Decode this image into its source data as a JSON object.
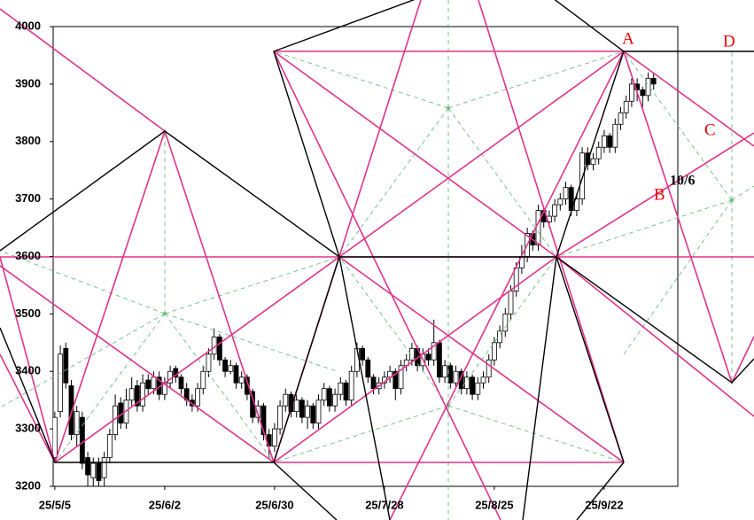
{
  "chart_data": {
    "type": "candlestick",
    "xlim": [
      -0.3,
      113.4
    ],
    "xticks": [
      {
        "value": 0,
        "label": "25/5/5"
      },
      {
        "value": 20,
        "label": "25/6/2"
      },
      {
        "value": 40,
        "label": "25/6/30"
      },
      {
        "value": 60,
        "label": "25/7/28"
      },
      {
        "value": 80,
        "label": "25/8/25"
      },
      {
        "value": 100,
        "label": "25/9/22"
      }
    ],
    "ylim": [
      3200,
      4000
    ],
    "yticks": [
      3200,
      3300,
      3400,
      3500,
      3600,
      3700,
      3800,
      3900,
      4000
    ],
    "annotations": [
      "A",
      "B",
      "C",
      "D",
      "10/6"
    ],
    "candles": [
      [
        3250,
        3330,
        3240,
        3320
      ],
      [
        3330,
        3445,
        3320,
        3430
      ],
      [
        3440,
        3450,
        3370,
        3380
      ],
      [
        3375,
        3385,
        3280,
        3290
      ],
      [
        3290,
        3340,
        3270,
        3330
      ],
      [
        3320,
        3330,
        3230,
        3240
      ],
      [
        3250,
        3260,
        3200,
        3220
      ],
      [
        3215,
        3250,
        3190,
        3240
      ],
      [
        3240,
        3250,
        3195,
        3210
      ],
      [
        3215,
        3260,
        3200,
        3250
      ],
      [
        3250,
        3300,
        3240,
        3290
      ],
      [
        3290,
        3360,
        3280,
        3340
      ],
      [
        3345,
        3355,
        3300,
        3310
      ],
      [
        3310,
        3370,
        3300,
        3350
      ],
      [
        3350,
        3390,
        3340,
        3370
      ],
      [
        3375,
        3385,
        3330,
        3340
      ],
      [
        3340,
        3395,
        3330,
        3380
      ],
      [
        3385,
        3395,
        3360,
        3370
      ],
      [
        3370,
        3400,
        3360,
        3390
      ],
      [
        3390,
        3400,
        3350,
        3360
      ],
      [
        3360,
        3390,
        3350,
        3380
      ],
      [
        3380,
        3410,
        3370,
        3400
      ],
      [
        3405,
        3410,
        3380,
        3390
      ],
      [
        3390,
        3395,
        3360,
        3370
      ],
      [
        3370,
        3380,
        3340,
        3350
      ],
      [
        3350,
        3360,
        3330,
        3340
      ],
      [
        3340,
        3380,
        3330,
        3370
      ],
      [
        3370,
        3410,
        3360,
        3400
      ],
      [
        3400,
        3440,
        3390,
        3430
      ],
      [
        3430,
        3475,
        3420,
        3460
      ],
      [
        3460,
        3465,
        3410,
        3420
      ],
      [
        3420,
        3425,
        3390,
        3400
      ],
      [
        3400,
        3420,
        3395,
        3410
      ],
      [
        3410,
        3415,
        3370,
        3380
      ],
      [
        3380,
        3400,
        3370,
        3390
      ],
      [
        3390,
        3395,
        3350,
        3360
      ],
      [
        3365,
        3370,
        3310,
        3320
      ],
      [
        3320,
        3350,
        3310,
        3340
      ],
      [
        3340,
        3345,
        3280,
        3290
      ],
      [
        3290,
        3300,
        3250,
        3270
      ],
      [
        3270,
        3310,
        3260,
        3300
      ],
      [
        3300,
        3350,
        3290,
        3340
      ],
      [
        3340,
        3370,
        3330,
        3360
      ],
      [
        3360,
        3365,
        3320,
        3330
      ],
      [
        3330,
        3360,
        3320,
        3350
      ],
      [
        3350,
        3355,
        3310,
        3320
      ],
      [
        3320,
        3350,
        3300,
        3340
      ],
      [
        3340,
        3345,
        3300,
        3310
      ],
      [
        3310,
        3360,
        3300,
        3350
      ],
      [
        3350,
        3380,
        3340,
        3370
      ],
      [
        3370,
        3375,
        3330,
        3340
      ],
      [
        3340,
        3370,
        3330,
        3360
      ],
      [
        3360,
        3390,
        3350,
        3380
      ],
      [
        3380,
        3385,
        3340,
        3350
      ],
      [
        3350,
        3410,
        3340,
        3400
      ],
      [
        3400,
        3450,
        3390,
        3440
      ],
      [
        3440,
        3445,
        3410,
        3420
      ],
      [
        3420,
        3425,
        3380,
        3390
      ],
      [
        3390,
        3395,
        3360,
        3370
      ],
      [
        3370,
        3390,
        3360,
        3380
      ],
      [
        3380,
        3400,
        3370,
        3390
      ],
      [
        3390,
        3410,
        3380,
        3400
      ],
      [
        3400,
        3405,
        3350,
        3370
      ],
      [
        3370,
        3420,
        3360,
        3410
      ],
      [
        3410,
        3430,
        3400,
        3420
      ],
      [
        3420,
        3450,
        3410,
        3440
      ],
      [
        3440,
        3445,
        3400,
        3410
      ],
      [
        3410,
        3440,
        3400,
        3430
      ],
      [
        3430,
        3440,
        3410,
        3420
      ],
      [
        3420,
        3490,
        3410,
        3450
      ],
      [
        3450,
        3455,
        3380,
        3390
      ],
      [
        3390,
        3420,
        3380,
        3410
      ],
      [
        3410,
        3415,
        3370,
        3380
      ],
      [
        3380,
        3410,
        3370,
        3400
      ],
      [
        3400,
        3405,
        3360,
        3370
      ],
      [
        3370,
        3400,
        3360,
        3390
      ],
      [
        3390,
        3395,
        3350,
        3360
      ],
      [
        3360,
        3390,
        3350,
        3380
      ],
      [
        3380,
        3400,
        3370,
        3390
      ],
      [
        3390,
        3430,
        3380,
        3420
      ],
      [
        3420,
        3460,
        3410,
        3450
      ],
      [
        3450,
        3480,
        3440,
        3470
      ],
      [
        3470,
        3510,
        3460,
        3500
      ],
      [
        3500,
        3550,
        3490,
        3540
      ],
      [
        3540,
        3590,
        3530,
        3580
      ],
      [
        3580,
        3620,
        3570,
        3600
      ],
      [
        3600,
        3650,
        3590,
        3640
      ],
      [
        3640,
        3645,
        3610,
        3620
      ],
      [
        3620,
        3690,
        3610,
        3680
      ],
      [
        3680,
        3685,
        3650,
        3660
      ],
      [
        3660,
        3680,
        3650,
        3670
      ],
      [
        3670,
        3700,
        3660,
        3690
      ],
      [
        3690,
        3710,
        3680,
        3700
      ],
      [
        3700,
        3730,
        3690,
        3720
      ],
      [
        3720,
        3725,
        3670,
        3680
      ],
      [
        3680,
        3710,
        3670,
        3700
      ],
      [
        3700,
        3790,
        3690,
        3780
      ],
      [
        3780,
        3790,
        3750,
        3760
      ],
      [
        3760,
        3780,
        3750,
        3770
      ],
      [
        3770,
        3800,
        3760,
        3790
      ],
      [
        3790,
        3820,
        3780,
        3810
      ],
      [
        3810,
        3815,
        3780,
        3790
      ],
      [
        3790,
        3840,
        3780,
        3830
      ],
      [
        3830,
        3860,
        3820,
        3850
      ],
      [
        3850,
        3880,
        3840,
        3870
      ],
      [
        3870,
        3910,
        3860,
        3900
      ],
      [
        3900,
        3910,
        3870,
        3890
      ],
      [
        3890,
        3895,
        3860,
        3880
      ],
      [
        3880,
        3920,
        3870,
        3910
      ],
      [
        3910,
        3920,
        3890,
        3900
      ]
    ]
  }
}
